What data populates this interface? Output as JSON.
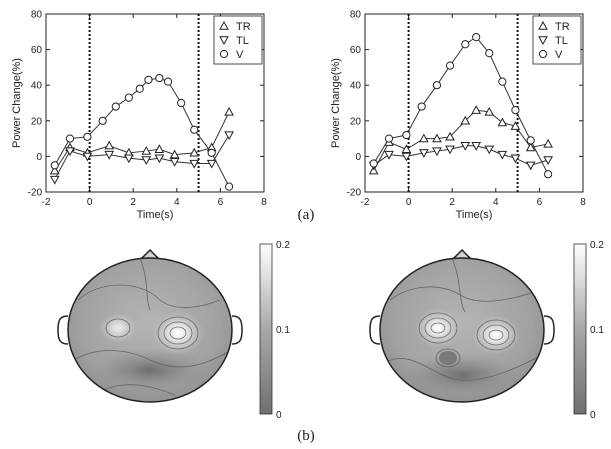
{
  "captions": {
    "a": "(a)",
    "b": "(b)"
  },
  "chart_data": [
    {
      "type": "line",
      "xlabel": "Time(s)",
      "ylabel": "Power Change(%)",
      "xlim": [
        -2,
        8
      ],
      "ylim": [
        -20,
        80
      ],
      "xticks": [
        -2,
        0,
        2,
        4,
        6,
        8
      ],
      "yticks": [
        -20,
        0,
        20,
        40,
        60,
        80
      ],
      "vlines": [
        0,
        5
      ],
      "legend_position": "top-right",
      "series": [
        {
          "name": "TR",
          "marker": "triangle-up",
          "x": [
            -1.6,
            -0.9,
            -0.1,
            0.9,
            1.8,
            2.6,
            3.2,
            3.9,
            4.8,
            5.6,
            6.4
          ],
          "y": [
            -8,
            5,
            2,
            6,
            2,
            3,
            4,
            1,
            2,
            5,
            25
          ]
        },
        {
          "name": "TL",
          "marker": "triangle-down",
          "x": [
            -1.6,
            -0.9,
            -0.1,
            0.9,
            1.8,
            2.6,
            3.2,
            3.9,
            4.8,
            5.6,
            6.4
          ],
          "y": [
            -13,
            3,
            0,
            1,
            -1,
            -2,
            -1,
            -3,
            -4,
            -4,
            12
          ]
        },
        {
          "name": "V",
          "marker": "circle",
          "x": [
            -1.6,
            -0.9,
            -0.1,
            0.6,
            1.2,
            1.8,
            2.3,
            2.7,
            3.2,
            3.6,
            4.2,
            4.8,
            5.6,
            6.4
          ],
          "y": [
            -5,
            10,
            11,
            20,
            28,
            33,
            38,
            43,
            44,
            42,
            30,
            15,
            2,
            -17
          ]
        }
      ]
    },
    {
      "type": "line",
      "xlabel": "Time(s)",
      "ylabel": "Power Change(%)",
      "xlim": [
        -2,
        8
      ],
      "ylim": [
        -20,
        80
      ],
      "xticks": [
        -2,
        0,
        2,
        4,
        6,
        8
      ],
      "yticks": [
        -20,
        0,
        20,
        40,
        60,
        80
      ],
      "vlines": [
        0,
        5
      ],
      "legend_position": "top-right",
      "series": [
        {
          "name": "TR",
          "marker": "triangle-up",
          "x": [
            -1.6,
            -0.9,
            -0.1,
            0.7,
            1.3,
            1.9,
            2.6,
            3.1,
            3.7,
            4.3,
            4.9,
            5.6,
            6.4
          ],
          "y": [
            -8,
            8,
            4,
            10,
            10,
            11,
            20,
            26,
            25,
            19,
            17,
            5,
            7
          ]
        },
        {
          "name": "TL",
          "marker": "triangle-down",
          "x": [
            -1.6,
            -0.9,
            -0.1,
            0.7,
            1.3,
            1.9,
            2.6,
            3.1,
            3.7,
            4.3,
            4.9,
            5.6,
            6.4
          ],
          "y": [
            -5,
            1,
            0,
            2,
            3,
            4,
            6,
            6,
            4,
            1,
            -1,
            -5,
            -2
          ]
        },
        {
          "name": "V",
          "marker": "circle",
          "x": [
            -1.6,
            -0.9,
            -0.1,
            0.6,
            1.3,
            1.9,
            2.6,
            3.1,
            3.7,
            4.3,
            4.9,
            5.6,
            6.4
          ],
          "y": [
            -4,
            10,
            12,
            28,
            40,
            51,
            63,
            67,
            58,
            42,
            26,
            9,
            -10
          ]
        }
      ]
    },
    {
      "type": "heatmap",
      "subtype": "scalp-topography",
      "colorbar": {
        "min": 0,
        "max": 0.2,
        "ticks": [
          "0",
          "0.1",
          "0.2"
        ]
      },
      "hotspots": [
        {
          "region": "left-central",
          "value": 0.13
        },
        {
          "region": "right-central",
          "value": 0.2
        }
      ]
    },
    {
      "type": "heatmap",
      "subtype": "scalp-topography",
      "colorbar": {
        "min": 0,
        "max": 0.2,
        "ticks": [
          "0",
          "0.1",
          "0.2"
        ]
      },
      "hotspots": [
        {
          "region": "left-central",
          "value": 0.2
        },
        {
          "region": "right-central",
          "value": 0.19
        },
        {
          "region": "left-posterior",
          "value": 0.04
        }
      ]
    }
  ]
}
